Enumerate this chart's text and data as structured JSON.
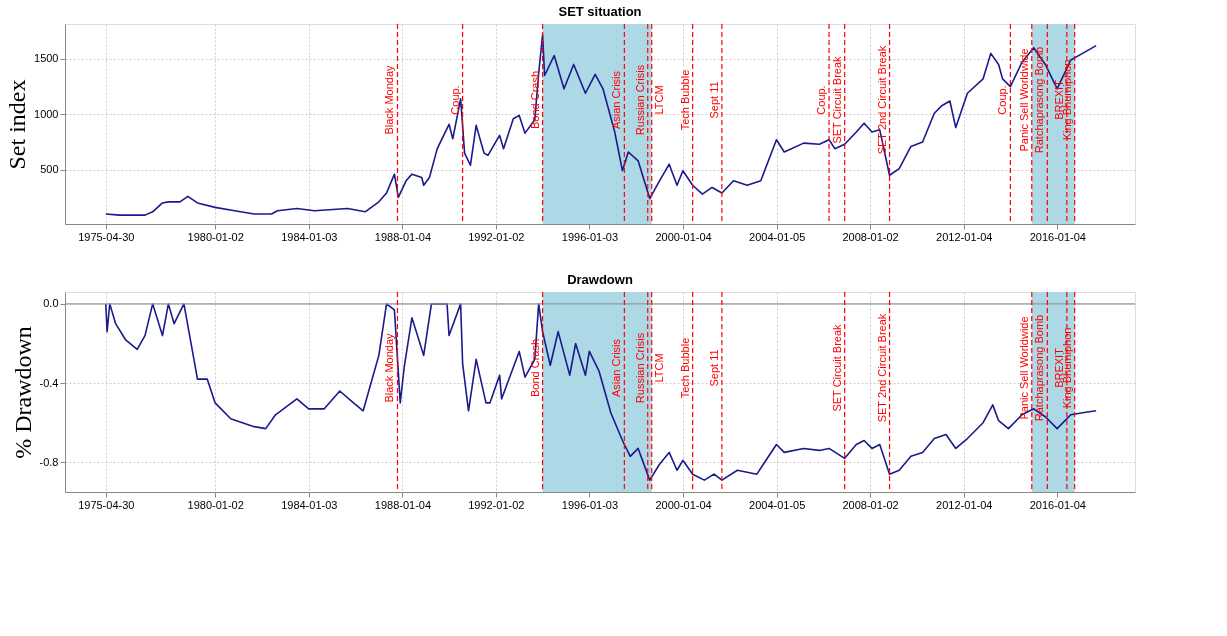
{
  "chart_data": [
    {
      "type": "line",
      "title": "SET situation",
      "ylabel": "Set index",
      "color": "#1a1a8c",
      "grid": true,
      "x": [
        "1975-04-30",
        "1975-12",
        "1977-01",
        "1977-05",
        "1977-10",
        "1978-01",
        "1978-07",
        "1978-11",
        "1979-04",
        "1980-01",
        "1980-11",
        "1981-09",
        "1982-06",
        "1982-09",
        "1983-07",
        "1984-04",
        "1985-09",
        "1986-06",
        "1987-01",
        "1987-05",
        "1987-09",
        "1987-11",
        "1988-03",
        "1988-06",
        "1988-11",
        "1988-12",
        "1989-03",
        "1989-07",
        "1990-01",
        "1990-03",
        "1990-07",
        "1990-09",
        "1990-12",
        "1991-03",
        "1991-07",
        "1991-09",
        "1992-03",
        "1992-05",
        "1992-10",
        "1993-01",
        "1993-04",
        "1993-09",
        "1993-11",
        "1994-01",
        "1994-02",
        "1994-07",
        "1994-12",
        "1995-05",
        "1995-11",
        "1996-04",
        "1996-08",
        "1997-02",
        "1997-06",
        "1997-09",
        "1998-02",
        "1998-08",
        "1999-01",
        "1999-06",
        "1999-10",
        "2000-01",
        "2000-06",
        "2000-11",
        "2001-04",
        "2001-09",
        "2002-03",
        "2002-10",
        "2003-05",
        "2004-01",
        "2004-05",
        "2005-03",
        "2005-11",
        "2006-04",
        "2006-07",
        "2006-12",
        "2007-06",
        "2007-10",
        "2008-02",
        "2008-06",
        "2008-11",
        "2009-04",
        "2009-10",
        "2010-04",
        "2010-10",
        "2011-02",
        "2011-06",
        "2011-09",
        "2012-03",
        "2012-11",
        "2013-03",
        "2013-07",
        "2013-09",
        "2014-01",
        "2014-07",
        "2015-01",
        "2015-07",
        "2016-01",
        "2016-08",
        "2017-02",
        "2017-09"
      ],
      "values": [
        100,
        90,
        90,
        120,
        200,
        210,
        210,
        260,
        200,
        160,
        130,
        100,
        100,
        130,
        150,
        130,
        150,
        120,
        210,
        290,
        460,
        250,
        400,
        460,
        430,
        360,
        430,
        690,
        910,
        780,
        1140,
        650,
        540,
        900,
        650,
        630,
        810,
        690,
        960,
        990,
        830,
        950,
        1370,
        1720,
        1350,
        1530,
        1230,
        1450,
        1190,
        1360,
        1230,
        840,
        490,
        660,
        580,
        240,
        400,
        550,
        360,
        490,
        360,
        280,
        340,
        290,
        400,
        360,
        400,
        770,
        660,
        740,
        730,
        770,
        690,
        730,
        840,
        920,
        840,
        860,
        450,
        510,
        710,
        750,
        1010,
        1080,
        1120,
        880,
        1190,
        1320,
        1550,
        1450,
        1320,
        1250,
        1470,
        1600,
        1450,
        1230,
        1490,
        1550,
        1620
      ],
      "xlim": [
        "1973-08",
        "2019-05"
      ],
      "xticks": [
        "1975-04-30",
        "1980-01-02",
        "1984-01-03",
        "1988-01-04",
        "1992-01-02",
        "1996-01-03",
        "2000-01-04",
        "2004-01-05",
        "2008-01-02",
        "2012-01-04",
        "2016-01-04"
      ],
      "ylim": [
        10,
        1815
      ],
      "yticks": [
        500,
        1000,
        1500
      ],
      "bands": [
        {
          "axis": "x",
          "from": "1994-01",
          "to": "1998-09",
          "color": "#add8e6"
        },
        {
          "axis": "x",
          "from": "2014-12",
          "to": "2016-10",
          "color": "#add8e6"
        }
      ],
      "ref_lines": [
        {
          "axis": "x",
          "value": "1987-10-19",
          "label": "Black Monday",
          "color": "#ff0000",
          "line_style": "dashed"
        },
        {
          "axis": "x",
          "value": "1990-08",
          "label": "Coup.",
          "color": "#ff0000",
          "line_style": "dashed"
        },
        {
          "axis": "x",
          "value": "1994-01",
          "label": "Bond Crash",
          "color": "#ff0000",
          "line_style": "dashed"
        },
        {
          "axis": "x",
          "value": "1997-07",
          "label": "Asian Crisis",
          "color": "#ff0000",
          "line_style": "dashed"
        },
        {
          "axis": "x",
          "value": "1998-07",
          "label": "Russian Crisis",
          "color": "#ff0000",
          "line_style": "dashed"
        },
        {
          "axis": "x",
          "value": "1998-09",
          "label": "LTCM",
          "color": "#ff0000",
          "line_style": "dashed"
        },
        {
          "axis": "x",
          "value": "2000-06",
          "label": "Tech Bubble",
          "color": "#ff0000",
          "line_style": "dashed"
        },
        {
          "axis": "x",
          "value": "2001-09",
          "label": "Sept 11",
          "color": "#ff0000",
          "line_style": "dashed"
        },
        {
          "axis": "x",
          "value": "2006-04",
          "label": "Coup.",
          "color": "#ff0000",
          "line_style": "dashed"
        },
        {
          "axis": "x",
          "value": "2006-12",
          "label": "SET Circuit Break",
          "color": "#ff0000",
          "line_style": "dashed"
        },
        {
          "axis": "x",
          "value": "2008-11",
          "label": "SET 2nd Circuit Break",
          "color": "#ff0000",
          "line_style": "dashed"
        },
        {
          "axis": "x",
          "value": "2014-01",
          "label": "Coup.",
          "color": "#ff0000",
          "line_style": "dashed"
        },
        {
          "axis": "x",
          "value": "2014-12",
          "label": "Panic Sell Worldwide",
          "color": "#ff0000",
          "line_style": "dashed"
        },
        {
          "axis": "x",
          "value": "2015-08",
          "label": "Ratchaprasong Bomb",
          "color": "#ff0000",
          "line_style": "dashed"
        },
        {
          "axis": "x",
          "value": "2016-06",
          "label": "BREXIT",
          "color": "#ff0000",
          "line_style": "dashed"
        },
        {
          "axis": "x",
          "value": "2016-10",
          "label": "King Bhumiphon",
          "color": "#ff0000",
          "line_style": "dashed"
        }
      ]
    },
    {
      "type": "line",
      "title": "Drawdown",
      "ylabel": "% Drawdown",
      "color": "#1a1a8c",
      "grid": true,
      "x": [
        "1975-04-30",
        "1975-05-20",
        "1975-07",
        "1975-10",
        "1976-03",
        "1976-09",
        "1977-01",
        "1977-05",
        "1977-10",
        "1978-01",
        "1978-04",
        "1978-09",
        "1979-04",
        "1979-09",
        "1980-01",
        "1980-09",
        "1981-09",
        "1982-03",
        "1982-08",
        "1983-07",
        "1984-01",
        "1984-09",
        "1985-05",
        "1985-12",
        "1986-05",
        "1986-09",
        "1987-01",
        "1987-05",
        "1987-09",
        "1987-12",
        "1988-02",
        "1988-06",
        "1988-12",
        "1989-04",
        "1989-12",
        "1990-01",
        "1990-07",
        "1990-08",
        "1990-11",
        "1991-03",
        "1991-08",
        "1991-10",
        "1992-03",
        "1992-04",
        "1993-01",
        "1993-04",
        "1993-09",
        "1993-11",
        "1994-01",
        "1994-05",
        "1994-09",
        "1995-03",
        "1995-06",
        "1995-11",
        "1996-01",
        "1996-06",
        "1996-12",
        "1997-06",
        "1997-10",
        "1998-02",
        "1998-08",
        "1999-01",
        "1999-06",
        "1999-10",
        "2000-01",
        "2000-06",
        "2000-12",
        "2001-05",
        "2001-09",
        "2002-05",
        "2003-03",
        "2003-07",
        "2004-01",
        "2004-05",
        "2005-03",
        "2005-11",
        "2006-04",
        "2006-12",
        "2007-06",
        "2007-10",
        "2008-02",
        "2008-06",
        "2008-11",
        "2009-04",
        "2009-10",
        "2010-04",
        "2010-10",
        "2011-04",
        "2011-09",
        "2012-03",
        "2012-11",
        "2013-04",
        "2013-07",
        "2013-12",
        "2014-07",
        "2015-01",
        "2015-07",
        "2016-01",
        "2016-08",
        "2017-02",
        "2017-09"
      ],
      "values": [
        0.0,
        -0.14,
        0.0,
        -0.1,
        -0.18,
        -0.23,
        -0.16,
        0.0,
        -0.16,
        0.0,
        -0.1,
        0.0,
        -0.38,
        -0.38,
        -0.5,
        -0.58,
        -0.62,
        -0.63,
        -0.56,
        -0.48,
        -0.53,
        -0.53,
        -0.44,
        -0.5,
        -0.54,
        -0.4,
        -0.26,
        0.0,
        -0.03,
        -0.5,
        -0.32,
        -0.07,
        -0.26,
        0.0,
        0.0,
        -0.16,
        0.0,
        -0.3,
        -0.54,
        -0.28,
        -0.5,
        -0.5,
        -0.36,
        -0.48,
        -0.24,
        -0.37,
        -0.28,
        0.0,
        -0.14,
        -0.31,
        -0.14,
        -0.36,
        -0.2,
        -0.36,
        -0.24,
        -0.34,
        -0.55,
        -0.69,
        -0.77,
        -0.73,
        -0.89,
        -0.81,
        -0.75,
        -0.84,
        -0.79,
        -0.86,
        -0.89,
        -0.86,
        -0.89,
        -0.84,
        -0.86,
        -0.8,
        -0.71,
        -0.75,
        -0.73,
        -0.74,
        -0.73,
        -0.78,
        -0.71,
        -0.69,
        -0.73,
        -0.71,
        -0.86,
        -0.84,
        -0.77,
        -0.75,
        -0.68,
        -0.66,
        -0.73,
        -0.68,
        -0.6,
        -0.51,
        -0.59,
        -0.63,
        -0.56,
        -0.53,
        -0.57,
        -0.63,
        -0.56,
        -0.55,
        -0.54
      ],
      "xlim": [
        "1973-08",
        "2019-05"
      ],
      "xticks": [
        "1975-04-30",
        "1980-01-02",
        "1984-01-03",
        "1988-01-04",
        "1992-01-02",
        "1996-01-03",
        "2000-01-04",
        "2004-01-05",
        "2008-01-02",
        "2012-01-04",
        "2016-01-04"
      ],
      "ylim": [
        -0.95,
        0.06
      ],
      "yticks": [
        {
          "value": 0,
          "label": "0.0"
        },
        -0.4,
        -0.8
      ],
      "bands": [
        {
          "axis": "x",
          "from": "1994-01",
          "to": "1998-09",
          "color": "#add8e6"
        },
        {
          "axis": "x",
          "from": "2014-12",
          "to": "2016-10",
          "color": "#add8e6"
        }
      ],
      "ref_lines": [
        {
          "axis": "y",
          "value": 0,
          "color": "#999999",
          "line_style": "solid"
        },
        {
          "axis": "x",
          "value": "1987-10-19",
          "label": "Black Monday",
          "color": "#ff0000",
          "line_style": "dashed"
        },
        {
          "axis": "x",
          "value": "1994-01",
          "label": "Bond Crash",
          "color": "#ff0000",
          "line_style": "dashed"
        },
        {
          "axis": "x",
          "value": "1997-07",
          "label": "Asian Crisis",
          "color": "#ff0000",
          "line_style": "dashed"
        },
        {
          "axis": "x",
          "value": "1998-07",
          "label": "Russian Crisis",
          "color": "#ff0000",
          "line_style": "dashed"
        },
        {
          "axis": "x",
          "value": "1998-09",
          "label": "LTCM",
          "color": "#ff0000",
          "line_style": "dashed"
        },
        {
          "axis": "x",
          "value": "2000-06",
          "label": "Tech Bubble",
          "color": "#ff0000",
          "line_style": "dashed"
        },
        {
          "axis": "x",
          "value": "2001-09",
          "label": "Sept 11",
          "color": "#ff0000",
          "line_style": "dashed"
        },
        {
          "axis": "x",
          "value": "2006-12",
          "label": "SET Circuit Break",
          "color": "#ff0000",
          "line_style": "dashed"
        },
        {
          "axis": "x",
          "value": "2008-11",
          "label": "SET 2nd Circuit Break",
          "color": "#ff0000",
          "line_style": "dashed"
        },
        {
          "axis": "x",
          "value": "2014-12",
          "label": "Panic Sell Worldwide",
          "color": "#ff0000",
          "line_style": "dashed"
        },
        {
          "axis": "x",
          "value": "2015-08",
          "label": "Ratchaprasong Bomb",
          "color": "#ff0000",
          "line_style": "dashed"
        },
        {
          "axis": "x",
          "value": "2016-06",
          "label": "BREXIT",
          "color": "#ff0000",
          "line_style": "dashed"
        },
        {
          "axis": "x",
          "value": "2016-10",
          "label": "King Bhumiphon",
          "color": "#ff0000",
          "line_style": "dashed"
        }
      ]
    }
  ]
}
